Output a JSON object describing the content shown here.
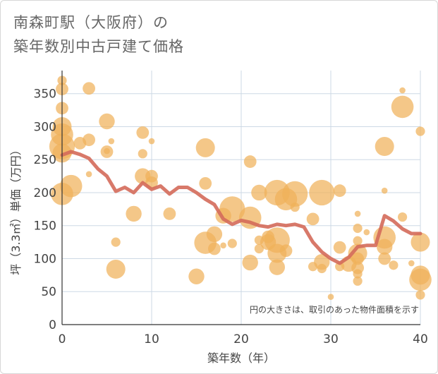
{
  "chart_data": {
    "type": "scatter",
    "title_line1": "南森町駅（大阪府）の",
    "title_line2": "築年数別中古戸建て価格",
    "xlabel": "築年数（年）",
    "ylabel": "坪（3.3㎡）単価（万円）",
    "xlim": [
      0,
      40
    ],
    "ylim": [
      0,
      385
    ],
    "xticks": [
      0,
      10,
      20,
      30,
      40
    ],
    "yticks": [
      0,
      50,
      100,
      150,
      200,
      250,
      300,
      350
    ],
    "note": "円の大きさは、取引のあった物件面積を示す",
    "colors": {
      "bubble": "#f0b25a",
      "line": "#d46a5a",
      "grid": "#cdd9e5"
    },
    "bubbles": [
      {
        "x": 0,
        "y": 370,
        "s": 2
      },
      {
        "x": 0,
        "y": 357,
        "s": 3
      },
      {
        "x": 0,
        "y": 328,
        "s": 3
      },
      {
        "x": 0,
        "y": 300,
        "s": 5
      },
      {
        "x": 0,
        "y": 288,
        "s": 6
      },
      {
        "x": 0,
        "y": 270,
        "s": 7
      },
      {
        "x": 0,
        "y": 260,
        "s": 5
      },
      {
        "x": 0,
        "y": 198,
        "s": 6
      },
      {
        "x": 1,
        "y": 210,
        "s": 6
      },
      {
        "x": 2,
        "y": 275,
        "s": 3
      },
      {
        "x": 3,
        "y": 358,
        "s": 3
      },
      {
        "x": 3,
        "y": 280,
        "s": 3
      },
      {
        "x": 3,
        "y": 228,
        "s": 1
      },
      {
        "x": 5,
        "y": 308,
        "s": 4
      },
      {
        "x": 5,
        "y": 262,
        "s": 3
      },
      {
        "x": 5,
        "y": 263,
        "s": 1
      },
      {
        "x": 5.5,
        "y": 278,
        "s": 1
      },
      {
        "x": 6,
        "y": 125,
        "s": 2
      },
      {
        "x": 6,
        "y": 84,
        "s": 5
      },
      {
        "x": 8,
        "y": 168,
        "s": 4
      },
      {
        "x": 9,
        "y": 291,
        "s": 3
      },
      {
        "x": 9,
        "y": 259,
        "s": 2
      },
      {
        "x": 9,
        "y": 225,
        "s": 4
      },
      {
        "x": 10,
        "y": 278,
        "s": 1
      },
      {
        "x": 10,
        "y": 225,
        "s": 3
      },
      {
        "x": 10,
        "y": 215,
        "s": 3
      },
      {
        "x": 12,
        "y": 168,
        "s": 3
      },
      {
        "x": 15,
        "y": 73,
        "s": 4
      },
      {
        "x": 16,
        "y": 268,
        "s": 5
      },
      {
        "x": 16,
        "y": 214,
        "s": 3
      },
      {
        "x": 16,
        "y": 124,
        "s": 6
      },
      {
        "x": 17,
        "y": 137,
        "s": 4
      },
      {
        "x": 17,
        "y": 115,
        "s": 3
      },
      {
        "x": 18,
        "y": 120,
        "s": 1
      },
      {
        "x": 18,
        "y": 165,
        "s": 4
      },
      {
        "x": 19,
        "y": 175,
        "s": 7
      },
      {
        "x": 19,
        "y": 123,
        "s": 2
      },
      {
        "x": 21,
        "y": 247,
        "s": 3
      },
      {
        "x": 21,
        "y": 162,
        "s": 6
      },
      {
        "x": 21,
        "y": 94,
        "s": 4
      },
      {
        "x": 22,
        "y": 200,
        "s": 4
      },
      {
        "x": 22,
        "y": 128,
        "s": 2
      },
      {
        "x": 22,
        "y": 115,
        "s": 2
      },
      {
        "x": 23,
        "y": 133,
        "s": 3
      },
      {
        "x": 23,
        "y": 125,
        "s": 4
      },
      {
        "x": 24,
        "y": 200,
        "s": 7
      },
      {
        "x": 24,
        "y": 128,
        "s": 7
      },
      {
        "x": 24,
        "y": 108,
        "s": 5
      },
      {
        "x": 24,
        "y": 87,
        "s": 4
      },
      {
        "x": 25,
        "y": 190,
        "s": 6
      },
      {
        "x": 25,
        "y": 112,
        "s": 3
      },
      {
        "x": 26,
        "y": 198,
        "s": 7
      },
      {
        "x": 26,
        "y": 178,
        "s": 2
      },
      {
        "x": 28,
        "y": 160,
        "s": 3
      },
      {
        "x": 28,
        "y": 88,
        "s": 2
      },
      {
        "x": 29,
        "y": 200,
        "s": 7
      },
      {
        "x": 29,
        "y": 95,
        "s": 4
      },
      {
        "x": 29,
        "y": 85,
        "s": 2
      },
      {
        "x": 30,
        "y": 42,
        "s": 1
      },
      {
        "x": 31,
        "y": 203,
        "s": 3
      },
      {
        "x": 31,
        "y": 117,
        "s": 3
      },
      {
        "x": 31,
        "y": 88,
        "s": 2
      },
      {
        "x": 32,
        "y": 92,
        "s": 4
      },
      {
        "x": 33,
        "y": 168,
        "s": 1
      },
      {
        "x": 33,
        "y": 146,
        "s": 2
      },
      {
        "x": 33,
        "y": 127,
        "s": 2
      },
      {
        "x": 33,
        "y": 108,
        "s": 5
      },
      {
        "x": 33,
        "y": 100,
        "s": 3
      },
      {
        "x": 33,
        "y": 86,
        "s": 3
      },
      {
        "x": 33,
        "y": 77,
        "s": 2
      },
      {
        "x": 33,
        "y": 66,
        "s": 2
      },
      {
        "x": 34,
        "y": 140,
        "s": 1
      },
      {
        "x": 36,
        "y": 270,
        "s": 5
      },
      {
        "x": 36,
        "y": 203,
        "s": 1
      },
      {
        "x": 36,
        "y": 132,
        "s": 6
      },
      {
        "x": 36,
        "y": 118,
        "s": 4
      },
      {
        "x": 36,
        "y": 100,
        "s": 3
      },
      {
        "x": 37,
        "y": 90,
        "s": 2
      },
      {
        "x": 38,
        "y": 355,
        "s": 1
      },
      {
        "x": 38,
        "y": 330,
        "s": 6
      },
      {
        "x": 38,
        "y": 163,
        "s": 2
      },
      {
        "x": 39,
        "y": 93,
        "s": 1
      },
      {
        "x": 40,
        "y": 293,
        "s": 2
      },
      {
        "x": 40,
        "y": 125,
        "s": 5
      },
      {
        "x": 40,
        "y": 75,
        "s": 5
      },
      {
        "x": 40,
        "y": 68,
        "s": 6
      },
      {
        "x": 40,
        "y": 45,
        "s": 2
      }
    ],
    "trend": {
      "x": [
        0,
        1,
        2,
        3,
        4,
        5,
        6,
        7,
        8,
        9,
        10,
        11,
        12,
        13,
        14,
        15,
        16,
        17,
        18,
        19,
        20,
        21,
        22,
        23,
        24,
        25,
        26,
        27,
        28,
        29,
        30,
        31,
        32,
        33,
        34,
        35,
        36,
        37,
        38,
        39,
        40
      ],
      "y": [
        257,
        262,
        258,
        252,
        236,
        225,
        202,
        208,
        200,
        215,
        205,
        210,
        198,
        208,
        208,
        200,
        190,
        182,
        160,
        152,
        158,
        155,
        150,
        148,
        152,
        150,
        152,
        148,
        125,
        110,
        100,
        93,
        102,
        118,
        120,
        120,
        165,
        157,
        145,
        138,
        138
      ]
    }
  }
}
